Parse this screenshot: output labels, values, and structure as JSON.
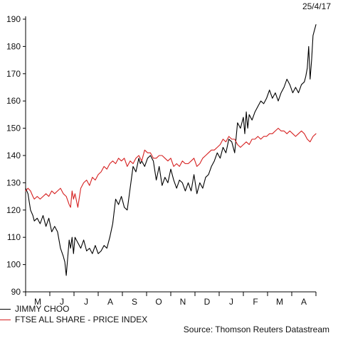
{
  "date_stamp": "25/4/17",
  "source": "Source: Thomson Reuters Datastream",
  "colors": {
    "axis": "#000000",
    "jimmy_choo": "#000000",
    "ftse": "#d62020"
  },
  "chart_data": {
    "type": "line",
    "title": "",
    "xlabel": "",
    "ylabel": "",
    "ylim": [
      90,
      190
    ],
    "yticks": [
      90,
      100,
      110,
      120,
      130,
      140,
      150,
      160,
      170,
      180,
      190
    ],
    "grid": false,
    "legend_position": "bottom-left",
    "month_labels": [
      "M",
      "J",
      "J",
      "A",
      "S",
      "O",
      "N",
      "D",
      "J",
      "F",
      "M",
      "A"
    ],
    "series": [
      {
        "name": "JIMMY CHOO",
        "color": "#000000",
        "t": [
          0,
          0.008,
          0.017,
          0.025,
          0.03,
          0.04,
          0.05,
          0.06,
          0.07,
          0.08,
          0.09,
          0.1,
          0.11,
          0.12,
          0.13,
          0.135,
          0.14,
          0.15,
          0.155,
          0.16,
          0.165,
          0.17,
          0.18,
          0.19,
          0.2,
          0.21,
          0.22,
          0.23,
          0.24,
          0.25,
          0.26,
          0.27,
          0.28,
          0.29,
          0.3,
          0.31,
          0.32,
          0.33,
          0.335,
          0.34,
          0.35,
          0.36,
          0.37,
          0.38,
          0.39,
          0.395,
          0.4,
          0.41,
          0.42,
          0.43,
          0.44,
          0.45,
          0.46,
          0.47,
          0.48,
          0.49,
          0.5,
          0.51,
          0.52,
          0.53,
          0.54,
          0.55,
          0.56,
          0.57,
          0.58,
          0.59,
          0.6,
          0.61,
          0.62,
          0.63,
          0.64,
          0.65,
          0.66,
          0.67,
          0.68,
          0.69,
          0.7,
          0.71,
          0.72,
          0.73,
          0.74,
          0.75,
          0.755,
          0.76,
          0.765,
          0.77,
          0.78,
          0.79,
          0.8,
          0.81,
          0.82,
          0.83,
          0.84,
          0.85,
          0.86,
          0.87,
          0.88,
          0.89,
          0.9,
          0.91,
          0.92,
          0.93,
          0.94,
          0.95,
          0.96,
          0.965,
          0.97,
          0.975,
          0.98,
          0.985,
          0.99,
          1.0
        ],
        "values": [
          128,
          126,
          120,
          118,
          116,
          117,
          115,
          118,
          114,
          117,
          112,
          114,
          112,
          106,
          103,
          101,
          96,
          109,
          106,
          110,
          104,
          110,
          108,
          106,
          109,
          105,
          106,
          104,
          107,
          104,
          105,
          107,
          106,
          110,
          115,
          124,
          122,
          125,
          123,
          121,
          120,
          128,
          136,
          134,
          139,
          137,
          138,
          136,
          139,
          140,
          138,
          131,
          136,
          129,
          132,
          130,
          135,
          131,
          128,
          131,
          130,
          127,
          130,
          127,
          133,
          126,
          130,
          128,
          132,
          133,
          136,
          138,
          141,
          139,
          143,
          141,
          146,
          145,
          141,
          152,
          150,
          154,
          148,
          156,
          150,
          155,
          153,
          156,
          158,
          160,
          159,
          161,
          164,
          161,
          163,
          160,
          163,
          165,
          168,
          166,
          163,
          165,
          163,
          166,
          167,
          169,
          172,
          180,
          168,
          175,
          184,
          188
        ]
      },
      {
        "name": "FTSE ALL SHARE - PRICE INDEX",
        "color": "#d62020",
        "t": [
          0,
          0.008,
          0.017,
          0.025,
          0.03,
          0.04,
          0.05,
          0.06,
          0.07,
          0.08,
          0.09,
          0.1,
          0.11,
          0.12,
          0.13,
          0.14,
          0.15,
          0.155,
          0.16,
          0.165,
          0.17,
          0.18,
          0.19,
          0.2,
          0.21,
          0.22,
          0.23,
          0.24,
          0.25,
          0.26,
          0.27,
          0.28,
          0.29,
          0.3,
          0.31,
          0.32,
          0.33,
          0.34,
          0.35,
          0.36,
          0.37,
          0.38,
          0.39,
          0.4,
          0.41,
          0.42,
          0.43,
          0.44,
          0.45,
          0.46,
          0.47,
          0.48,
          0.49,
          0.5,
          0.51,
          0.52,
          0.53,
          0.54,
          0.55,
          0.56,
          0.57,
          0.58,
          0.59,
          0.6,
          0.61,
          0.62,
          0.63,
          0.64,
          0.65,
          0.66,
          0.67,
          0.68,
          0.69,
          0.7,
          0.71,
          0.72,
          0.73,
          0.74,
          0.75,
          0.76,
          0.77,
          0.78,
          0.79,
          0.8,
          0.81,
          0.82,
          0.83,
          0.84,
          0.85,
          0.86,
          0.87,
          0.88,
          0.89,
          0.9,
          0.91,
          0.92,
          0.93,
          0.94,
          0.95,
          0.96,
          0.97,
          0.98,
          0.99,
          1.0
        ],
        "values": [
          127,
          128,
          127,
          125,
          124,
          125,
          124,
          125,
          126,
          125,
          127,
          126,
          127,
          128,
          126,
          125,
          122,
          121,
          127,
          124,
          126,
          121,
          128,
          130,
          131,
          129,
          132,
          131,
          133,
          134,
          136,
          135,
          137,
          138,
          137,
          139,
          138,
          139,
          136,
          138,
          137,
          139,
          140,
          138,
          142,
          141,
          141,
          139,
          139,
          140,
          140,
          139,
          138,
          139,
          136,
          137,
          136,
          138,
          137,
          137,
          138,
          139,
          136,
          137,
          139,
          140,
          141,
          142,
          142,
          143,
          144,
          146,
          145,
          147,
          146,
          146,
          144,
          143,
          144,
          145,
          144,
          146,
          146,
          147,
          146,
          147,
          147,
          148,
          148,
          149,
          150,
          149,
          149,
          148,
          149,
          148,
          147,
          148,
          149,
          148,
          146,
          145,
          147,
          148
        ]
      }
    ]
  }
}
